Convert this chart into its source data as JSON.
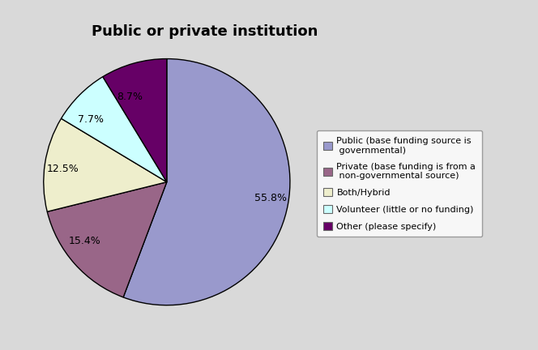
{
  "title": "Public or private institution",
  "slices": [
    55.8,
    15.4,
    12.5,
    7.7,
    8.7
  ],
  "labels": [
    "55.8%",
    "15.4%",
    "12.5%",
    "7.7%",
    "8.7%"
  ],
  "colors": [
    "#9999cc",
    "#996688",
    "#eeeecc",
    "#ccffff",
    "#660066"
  ],
  "legend_labels": [
    "Public (base funding source is\n governmental)",
    "Private (base funding is from a\n non-governmental source)",
    "Both/Hybrid",
    "Volunteer (little or no funding)",
    "Other (please specify)"
  ],
  "background_color": "#d9d9d9",
  "startangle": 90,
  "title_fontsize": 13,
  "label_fontsize": 9
}
